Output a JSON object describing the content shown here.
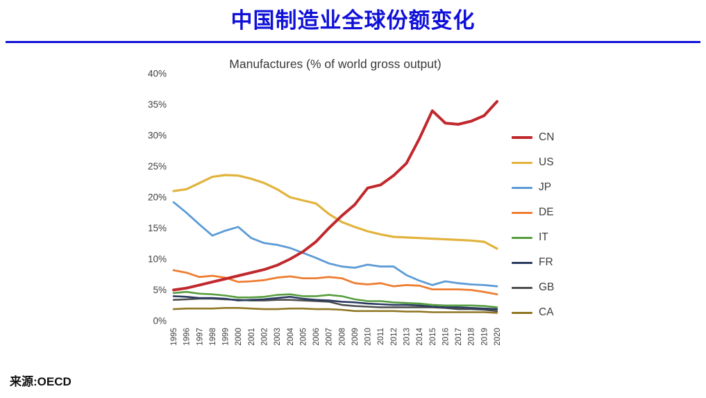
{
  "page": {
    "title": "中国制造业全球份额变化",
    "source": "来源:OECD"
  },
  "colors": {
    "title_blue": "#0f10d8",
    "divider_blue": "#0f10d8",
    "axis_text": "#3d3d3d",
    "chart_title_text": "#3a3a3a"
  },
  "chart_data": {
    "type": "line",
    "title": "Manufactures (% of world gross output)",
    "xlabel": "",
    "ylabel": "",
    "ylim": [
      0,
      40
    ],
    "ytick_step": 5,
    "ytick_suffix": "%",
    "grid": false,
    "legend_position": "right",
    "categories": [
      "1995",
      "1996",
      "1997",
      "1998",
      "1999",
      "2000",
      "2001",
      "2002",
      "2003",
      "2004",
      "2005",
      "2006",
      "2007",
      "2008",
      "2009",
      "2010",
      "2011",
      "2012",
      "2013",
      "2014",
      "2015",
      "2016",
      "2017",
      "2018",
      "2019",
      "2020"
    ],
    "series": [
      {
        "name": "CN",
        "color": "#c0282d",
        "width": 4,
        "values": [
          5.0,
          5.3,
          5.8,
          6.3,
          6.8,
          7.3,
          7.8,
          8.3,
          9.0,
          10.0,
          11.2,
          12.8,
          15.0,
          17.0,
          18.8,
          21.5,
          22.0,
          23.5,
          25.5,
          29.5,
          34.0,
          32.0,
          31.8,
          32.3,
          33.2,
          35.5
        ]
      },
      {
        "name": "US",
        "color": "#e2b33c",
        "width": 3.2,
        "values": [
          21.0,
          21.3,
          22.3,
          23.3,
          23.6,
          23.5,
          23.0,
          22.3,
          21.3,
          20.0,
          19.5,
          19.0,
          17.3,
          16.0,
          15.2,
          14.5,
          14.0,
          13.6,
          13.5,
          13.4,
          13.3,
          13.2,
          13.1,
          13.0,
          12.8,
          11.7
        ]
      },
      {
        "name": "JP",
        "color": "#5b9bd5",
        "width": 2.8,
        "values": [
          19.2,
          17.5,
          15.6,
          13.8,
          14.6,
          15.2,
          13.4,
          12.6,
          12.3,
          11.8,
          11.0,
          10.2,
          9.3,
          8.8,
          8.6,
          9.1,
          8.8,
          8.8,
          7.4,
          6.5,
          5.8,
          6.4,
          6.1,
          5.9,
          5.8,
          5.6
        ]
      },
      {
        "name": "DE",
        "color": "#ed7d31",
        "width": 2.8,
        "values": [
          8.2,
          7.8,
          7.1,
          7.3,
          7.0,
          6.3,
          6.4,
          6.6,
          7.0,
          7.2,
          6.9,
          6.9,
          7.1,
          6.9,
          6.1,
          5.9,
          6.1,
          5.6,
          5.8,
          5.7,
          5.1,
          5.1,
          5.1,
          5.0,
          4.7,
          4.3
        ]
      },
      {
        "name": "IT",
        "color": "#569d3e",
        "width": 2.6,
        "values": [
          4.5,
          4.7,
          4.4,
          4.3,
          4.1,
          3.8,
          3.8,
          3.9,
          4.2,
          4.3,
          4.0,
          4.0,
          4.2,
          4.0,
          3.5,
          3.2,
          3.2,
          3.0,
          2.9,
          2.8,
          2.6,
          2.5,
          2.5,
          2.5,
          2.4,
          2.2
        ]
      },
      {
        "name": "FR",
        "color": "#2a3b60",
        "width": 2.6,
        "values": [
          4.0,
          3.9,
          3.7,
          3.7,
          3.6,
          3.3,
          3.4,
          3.5,
          3.7,
          3.9,
          3.6,
          3.4,
          3.3,
          3.1,
          3.0,
          2.8,
          2.7,
          2.6,
          2.6,
          2.5,
          2.3,
          2.2,
          2.2,
          2.1,
          2.0,
          1.9
        ]
      },
      {
        "name": "GB",
        "color": "#4d4d4d",
        "width": 2.6,
        "values": [
          3.4,
          3.5,
          3.6,
          3.6,
          3.5,
          3.4,
          3.3,
          3.3,
          3.4,
          3.4,
          3.3,
          3.2,
          3.1,
          2.6,
          2.4,
          2.3,
          2.2,
          2.2,
          2.2,
          2.2,
          2.2,
          2.1,
          1.9,
          1.9,
          1.8,
          1.6
        ]
      },
      {
        "name": "CA",
        "color": "#8f7724",
        "width": 2.6,
        "values": [
          1.9,
          2.0,
          2.0,
          2.0,
          2.1,
          2.1,
          2.0,
          1.9,
          1.9,
          2.0,
          2.0,
          1.9,
          1.9,
          1.8,
          1.6,
          1.6,
          1.6,
          1.6,
          1.5,
          1.5,
          1.4,
          1.4,
          1.4,
          1.4,
          1.4,
          1.3
        ]
      }
    ]
  }
}
